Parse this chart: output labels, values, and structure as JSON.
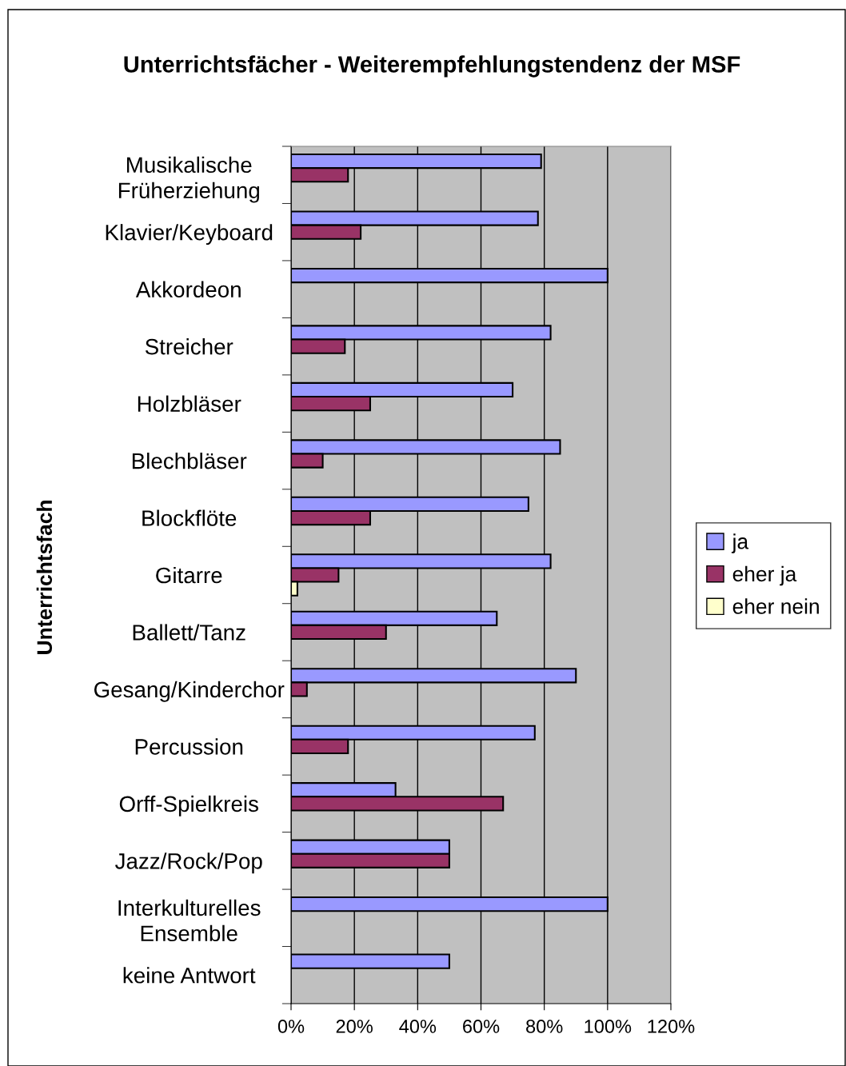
{
  "chart_data": {
    "type": "bar",
    "orientation": "horizontal",
    "title": "Unterrichtsfächer - Weiterempfehlungstendenz der MSF",
    "ylabel": "Unterrichtsfach",
    "categories": [
      "Musikalische\nFrüherziehung",
      "Klavier/Keyboard",
      "Akkordeon",
      "Streicher",
      "Holzbläser",
      "Blechbläser",
      "Blockflöte",
      "Gitarre",
      "Ballett/Tanz",
      "Gesang/Kinderchor",
      "Percussion",
      "Orff-Spielkreis",
      "Jazz/Rock/Pop",
      "Interkulturelles\nEnsemble",
      "keine Antwort"
    ],
    "series": [
      {
        "name": "ja",
        "color": "#9999ff",
        "values": [
          79,
          78,
          100,
          82,
          70,
          85,
          75,
          82,
          65,
          90,
          77,
          33,
          50,
          100,
          50
        ]
      },
      {
        "name": "eher ja",
        "color": "#993366",
        "values": [
          18,
          22,
          null,
          17,
          25,
          10,
          25,
          15,
          30,
          5,
          18,
          67,
          50,
          null,
          null
        ]
      },
      {
        "name": "eher nein",
        "color": "#ffffcc",
        "values": [
          null,
          null,
          null,
          null,
          null,
          null,
          null,
          2,
          null,
          null,
          null,
          null,
          null,
          null,
          null
        ]
      }
    ],
    "xlim": [
      0,
      120
    ],
    "xticks": [
      {
        "value": 0,
        "label": "0%"
      },
      {
        "value": 20,
        "label": "20%"
      },
      {
        "value": 40,
        "label": "40%"
      },
      {
        "value": 60,
        "label": "60%"
      },
      {
        "value": 80,
        "label": "80%"
      },
      {
        "value": 100,
        "label": "100%"
      },
      {
        "value": 120,
        "label": "120%"
      }
    ],
    "grid": "x",
    "legend": "right"
  }
}
